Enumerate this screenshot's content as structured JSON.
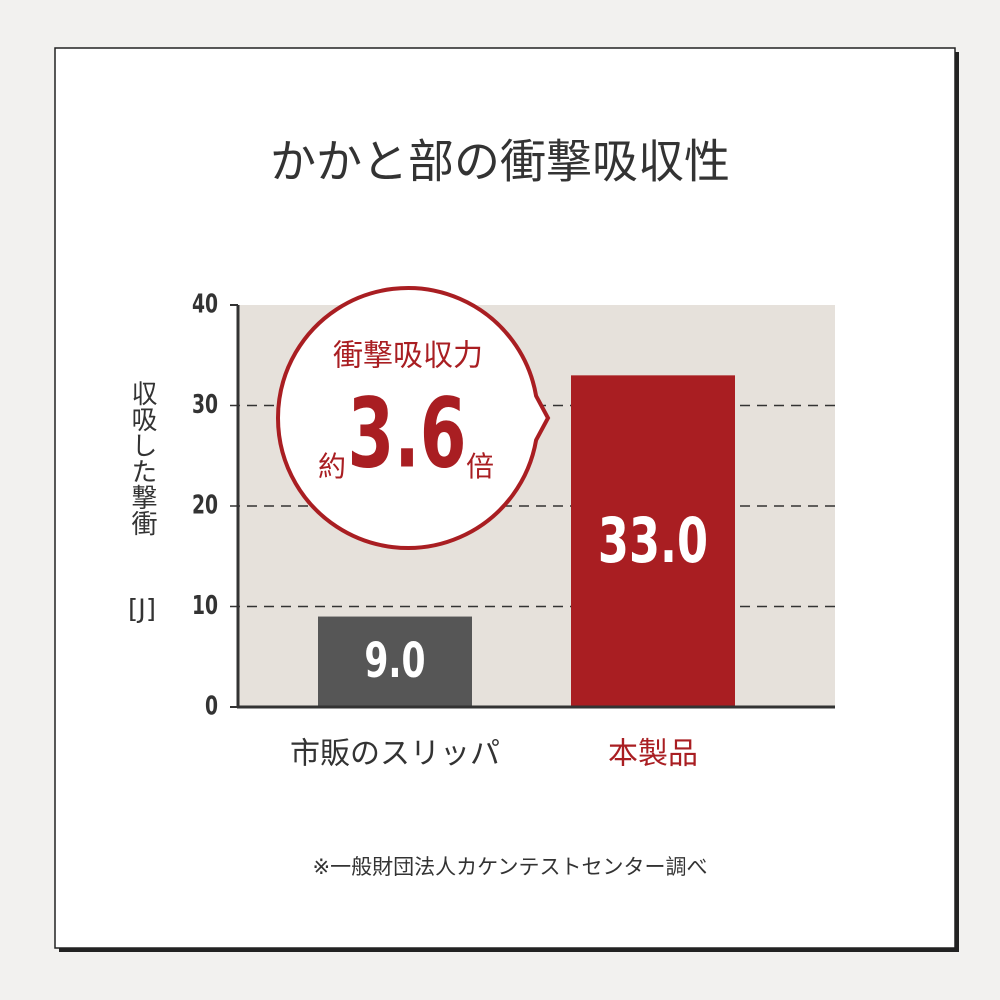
{
  "chart_data": {
    "type": "bar",
    "title": "かかと部の衝撃吸収性",
    "y_label": "収吸した撃衝",
    "y_unit": "[J]",
    "categories": [
      "市販のスリッパ",
      "本製品"
    ],
    "values": [
      9,
      33
    ],
    "value_labels": [
      "9.0",
      "33.0"
    ],
    "colors": [
      "#565656",
      "#a91e22"
    ],
    "category_label_colors": [
      "#333333",
      "#a91e22"
    ],
    "ylim": [
      0,
      40
    ],
    "yticks": [
      0,
      10,
      20,
      30,
      40
    ],
    "grid": true,
    "annotation": {
      "heading": "衝撃吸収力",
      "prefix": "約",
      "value": 3.6,
      "suffix": "倍"
    },
    "footnote": "※一般財団法人カケンテストセンター調べ"
  }
}
